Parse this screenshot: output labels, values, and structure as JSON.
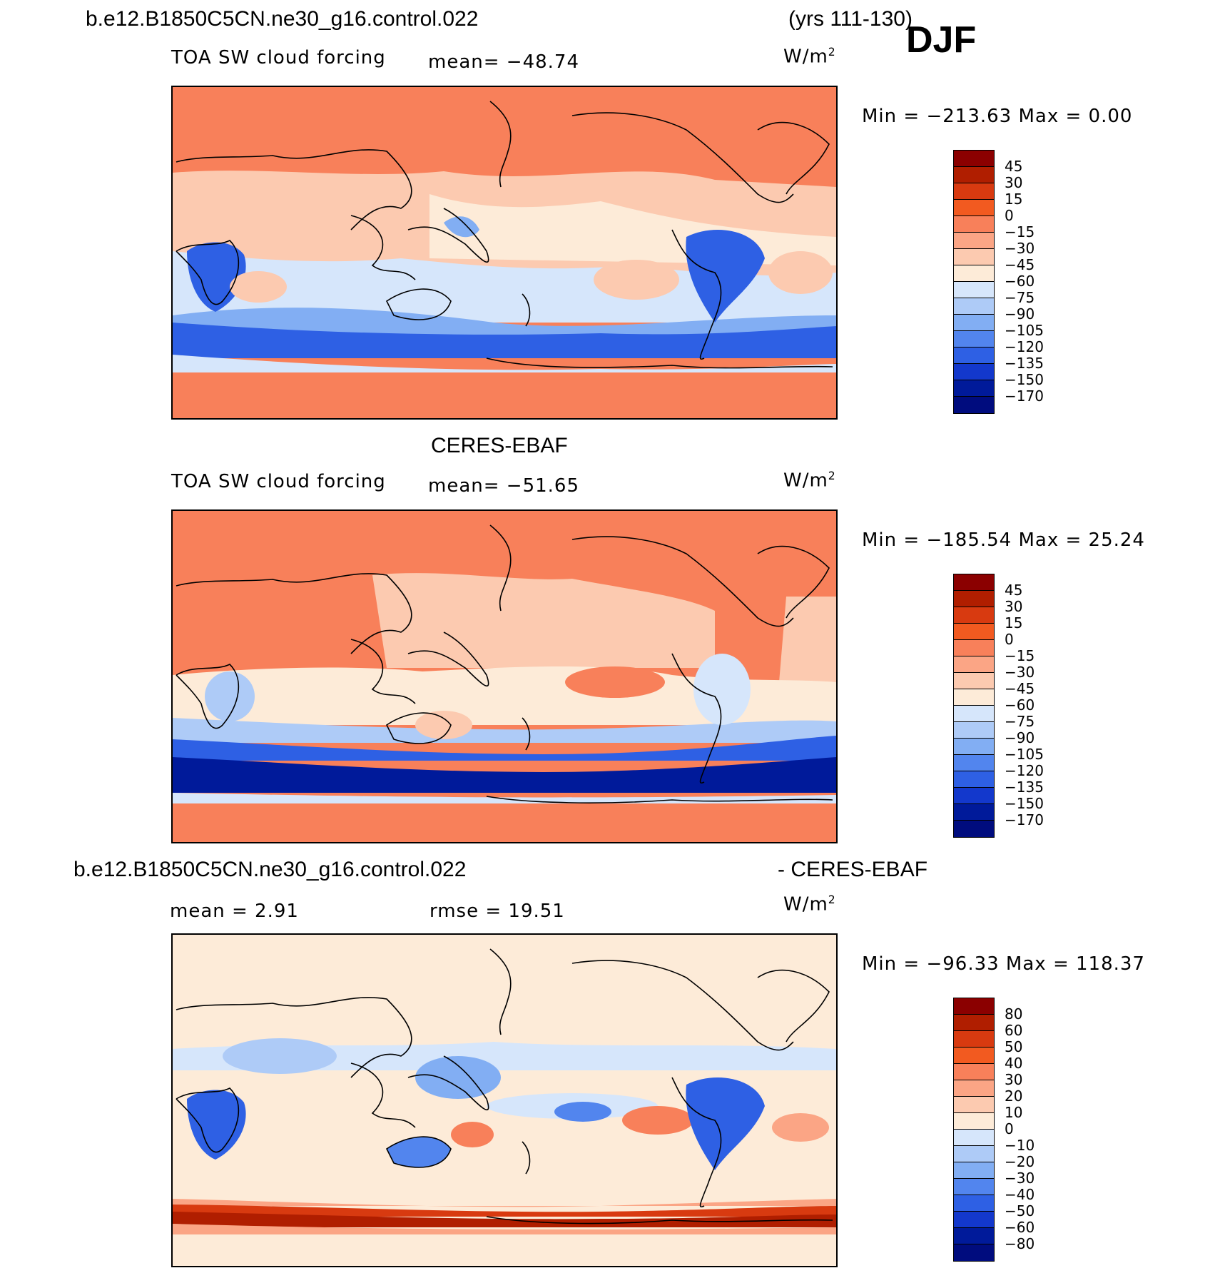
{
  "header": {
    "case_name": "b.e12.B1850C5CN.ne30_g16.control.022",
    "years": "(yrs 111-130)",
    "season": "DJF"
  },
  "panels": [
    {
      "title": "",
      "variable": "TOA SW cloud forcing",
      "stat": "mean= −48.74",
      "units": "W/m",
      "units_sup": "2",
      "minmax": "Min = −213.63 Max =    0.00",
      "colorbar_labels": [
        "45",
        "30",
        "15",
        "0",
        "−15",
        "−30",
        "−45",
        "−60",
        "−75",
        "−90",
        "−105",
        "−120",
        "−135",
        "−150",
        "−170"
      ]
    },
    {
      "title": "CERES-EBAF",
      "variable": "TOA SW cloud forcing",
      "stat": "mean= −51.65",
      "units": "W/m",
      "units_sup": "2",
      "minmax": "Min = −185.54 Max =  25.24",
      "colorbar_labels": [
        "45",
        "30",
        "15",
        "0",
        "−15",
        "−30",
        "−45",
        "−60",
        "−75",
        "−90",
        "−105",
        "−120",
        "−135",
        "−150",
        "−170"
      ]
    },
    {
      "title_left": "b.e12.B1850C5CN.ne30_g16.control.022",
      "title_right": "- CERES-EBAF",
      "variable": "mean =    2.91",
      "stat": "rmse =   19.51",
      "units": "W/m",
      "units_sup": "2",
      "minmax": "Min = −96.33 Max = 118.37",
      "colorbar_labels": [
        "80",
        "60",
        "50",
        "40",
        "30",
        "20",
        "10",
        "0",
        "−10",
        "−20",
        "−30",
        "−40",
        "−50",
        "−60",
        "−80"
      ]
    }
  ],
  "colorbar_colors": [
    "#8b0000",
    "#b01e00",
    "#d83a10",
    "#f25a20",
    "#f8805a",
    "#fba585",
    "#fccab0",
    "#fdebd8",
    "#d6e6fb",
    "#aecbf7",
    "#82aef3",
    "#5285ee",
    "#2e60e4",
    "#1338cc",
    "#001a9a",
    "#000c7e"
  ],
  "map_colors": {
    "land": "#f8805a",
    "ocean_light": "#fccab0",
    "neutral": "#fdebd8",
    "light_blue": "#d6e6fb",
    "mid_blue": "#82aef3",
    "deep_blue": "#2e60e4",
    "dark_red": "#b01e00",
    "coast": "#000000"
  }
}
